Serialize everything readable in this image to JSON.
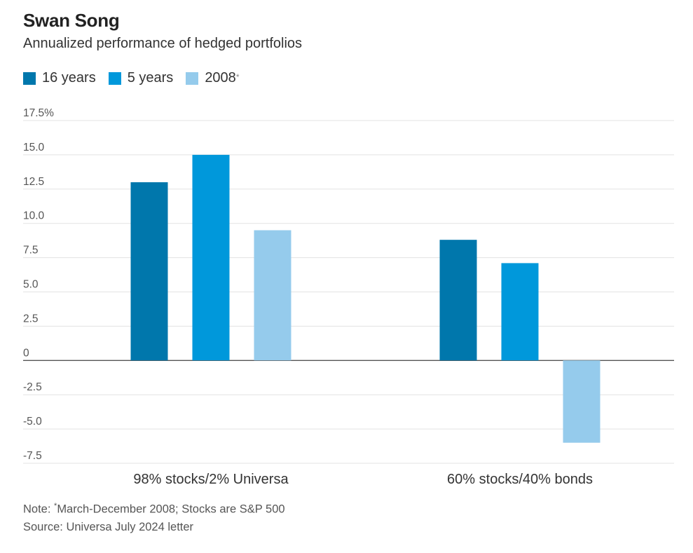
{
  "title": "Swan Song",
  "subtitle": "Annualized performance of hedged portfolios",
  "legend": [
    {
      "label": "16 years",
      "color": "#0077ac",
      "mark": ""
    },
    {
      "label": "5 years",
      "color": "#0098db",
      "mark": ""
    },
    {
      "label": "2008",
      "color": "#95cbec",
      "mark": "*"
    }
  ],
  "chart_data": {
    "type": "bar",
    "categories": [
      "98% stocks/2% Universa",
      "60% stocks/40% bonds"
    ],
    "series": [
      {
        "name": "16 years",
        "values": [
          13.0,
          8.8
        ]
      },
      {
        "name": "5 years",
        "values": [
          15.0,
          7.1
        ]
      },
      {
        "name": "2008",
        "values": [
          9.5,
          -6.0
        ]
      }
    ],
    "ylim": [
      -7.5,
      17.5
    ],
    "y_ticks": [
      {
        "value": 17.5,
        "label": "17.5%"
      },
      {
        "value": 15,
        "label": "15.0"
      },
      {
        "value": 12.5,
        "label": "12.5"
      },
      {
        "value": 10,
        "label": "10.0"
      },
      {
        "value": 7.5,
        "label": "7.5"
      },
      {
        "value": 5,
        "label": "5.0"
      },
      {
        "value": 2.5,
        "label": "2.5"
      },
      {
        "value": 0,
        "label": "0"
      },
      {
        "value": -2.5,
        "label": "-2.5"
      },
      {
        "value": -5,
        "label": "-5.0"
      },
      {
        "value": -7.5,
        "label": "-7.5"
      }
    ],
    "grid": true,
    "legend_position": "top-left"
  },
  "note": {
    "prefix": "Note: ",
    "mark": "*",
    "text": "March-December 2008; Stocks are S&P 500"
  },
  "source": "Source: Universa July 2024 letter"
}
